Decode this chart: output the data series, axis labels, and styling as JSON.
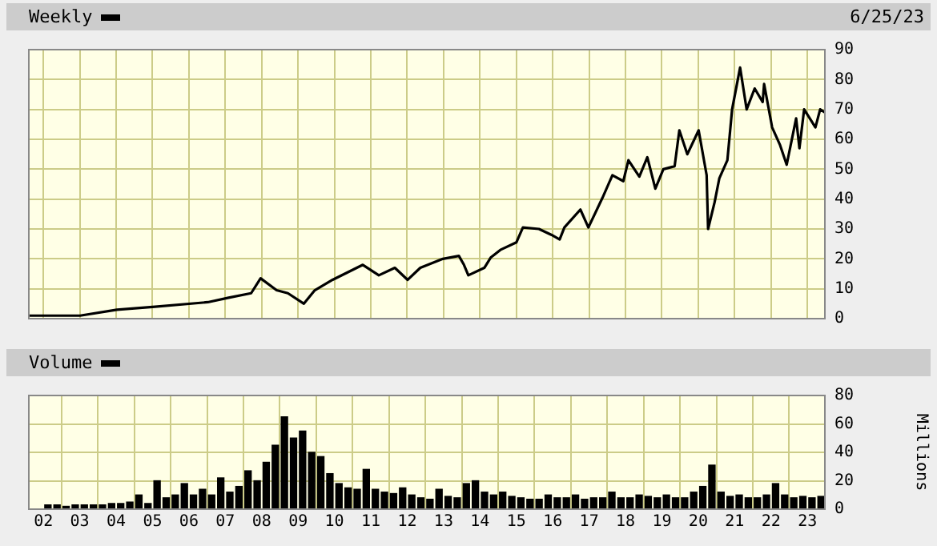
{
  "chart_data": [
    {
      "type": "line",
      "title": "Weekly",
      "annotations": [
        "6/25/23"
      ],
      "color": "#000000",
      "marker": "none",
      "grid": true,
      "tick_labels": "y",
      "x": [
        2001.6,
        2003.01,
        2004.02,
        2005.07,
        2006.52,
        2007.09,
        2007.71,
        2007.97,
        2008.41,
        2008.72,
        2009.16,
        2009.46,
        2009.95,
        2010.78,
        2011.22,
        2011.66,
        2012.01,
        2012.36,
        2012.98,
        2013.42,
        2013.56,
        2013.68,
        2014.12,
        2014.3,
        2014.56,
        2015.0,
        2015.18,
        2015.62,
        2015.97,
        2016.19,
        2016.32,
        2016.76,
        2016.98,
        2017.37,
        2017.64,
        2017.94,
        2018.08,
        2018.38,
        2018.6,
        2018.82,
        2019.04,
        2019.35,
        2019.48,
        2019.7,
        2020.01,
        2020.23,
        2020.27,
        2020.45,
        2020.58,
        2020.8,
        2020.93,
        2021.15,
        2021.33,
        2021.55,
        2021.77,
        2021.81,
        2022.03,
        2022.25,
        2022.43,
        2022.69,
        2022.78,
        2022.91,
        2023.22,
        2023.35,
        2023.48
      ],
      "values": [
        1,
        1,
        3,
        4,
        5.5,
        7,
        8.5,
        13.5,
        9.5,
        8.5,
        5,
        9.5,
        13,
        18,
        14.5,
        17,
        13,
        17,
        20,
        21,
        18,
        14.5,
        17,
        20.5,
        23,
        25.5,
        30.5,
        30,
        28,
        26.5,
        30.5,
        36.5,
        30.5,
        40.5,
        48,
        46,
        53,
        47.5,
        54,
        43.5,
        50,
        51,
        63,
        55,
        63,
        48,
        30,
        39,
        47,
        53,
        70,
        84,
        70,
        77,
        72.5,
        78.5,
        64,
        58,
        51.5,
        67,
        57,
        70,
        64,
        70,
        69
      ],
      "xlim": [
        2001.6,
        2023.48
      ],
      "xticks": [
        {
          "value": 2002,
          "label": null
        },
        {
          "value": 2003,
          "label": null
        },
        {
          "value": 2004,
          "label": null
        },
        {
          "value": 2005,
          "label": null
        },
        {
          "value": 2006,
          "label": null
        },
        {
          "value": 2007,
          "label": null
        },
        {
          "value": 2008,
          "label": null
        },
        {
          "value": 2009,
          "label": null
        },
        {
          "value": 2010,
          "label": null
        },
        {
          "value": 2011,
          "label": null
        },
        {
          "value": 2012,
          "label": null
        },
        {
          "value": 2013,
          "label": null
        },
        {
          "value": 2014,
          "label": null
        },
        {
          "value": 2015,
          "label": null
        },
        {
          "value": 2016,
          "label": null
        },
        {
          "value": 2017,
          "label": null
        },
        {
          "value": 2018,
          "label": null
        },
        {
          "value": 2019,
          "label": null
        },
        {
          "value": 2020,
          "label": null
        },
        {
          "value": 2021,
          "label": null
        },
        {
          "value": 2022,
          "label": null
        },
        {
          "value": 2023,
          "label": null
        }
      ],
      "ylim": [
        0,
        90
      ],
      "yticks": [
        0,
        10,
        20,
        30,
        40,
        50,
        60,
        70,
        80,
        90
      ]
    },
    {
      "type": "bar",
      "title": "Volume",
      "ylabel": "Millions",
      "color": "#000000",
      "grid": true,
      "x": [
        2002.125,
        2002.375,
        2002.625,
        2002.875,
        2003.125,
        2003.375,
        2003.625,
        2003.875,
        2004.125,
        2004.375,
        2004.625,
        2004.875,
        2005.125,
        2005.375,
        2005.625,
        2005.875,
        2006.125,
        2006.375,
        2006.625,
        2006.875,
        2007.125,
        2007.375,
        2007.625,
        2007.875,
        2008.125,
        2008.375,
        2008.625,
        2008.875,
        2009.125,
        2009.375,
        2009.625,
        2009.875,
        2010.125,
        2010.375,
        2010.625,
        2010.875,
        2011.125,
        2011.375,
        2011.625,
        2011.875,
        2012.125,
        2012.375,
        2012.625,
        2012.875,
        2013.125,
        2013.375,
        2013.625,
        2013.875,
        2014.125,
        2014.375,
        2014.625,
        2014.875,
        2015.125,
        2015.375,
        2015.625,
        2015.875,
        2016.125,
        2016.375,
        2016.625,
        2016.875,
        2017.125,
        2017.375,
        2017.625,
        2017.875,
        2018.125,
        2018.375,
        2018.625,
        2018.875,
        2019.125,
        2019.375,
        2019.625,
        2019.875,
        2020.125,
        2020.375,
        2020.625,
        2020.875,
        2021.125,
        2021.375,
        2021.625,
        2021.875,
        2022.125,
        2022.375,
        2022.625,
        2022.875,
        2023.125,
        2023.375
      ],
      "values": [
        3,
        3,
        2,
        3,
        3,
        3,
        3,
        4,
        4,
        5,
        10,
        4,
        20,
        8,
        10,
        18,
        10,
        14,
        10,
        22,
        12,
        16,
        27,
        20,
        33,
        45,
        65,
        50,
        55,
        40,
        37,
        25,
        18,
        15,
        14,
        28,
        14,
        12,
        11,
        15,
        10,
        8,
        7,
        14,
        9,
        8,
        18,
        20,
        12,
        10,
        12,
        9,
        8,
        7,
        7,
        10,
        8,
        8,
        10,
        7,
        8,
        8,
        12,
        8,
        8,
        10,
        9,
        8,
        10,
        8,
        8,
        12,
        16,
        31,
        12,
        9,
        10,
        8,
        8,
        10,
        18,
        10,
        8,
        9,
        8,
        9
      ],
      "xlim": [
        2001.6,
        2023.48
      ],
      "xticks": [
        {
          "value": 2002,
          "label": "02"
        },
        {
          "value": 2003,
          "label": "03"
        },
        {
          "value": 2004,
          "label": "04"
        },
        {
          "value": 2005,
          "label": "05"
        },
        {
          "value": 2006,
          "label": "06"
        },
        {
          "value": 2007,
          "label": "07"
        },
        {
          "value": 2008,
          "label": "08"
        },
        {
          "value": 2009,
          "label": "09"
        },
        {
          "value": 2010,
          "label": "10"
        },
        {
          "value": 2011,
          "label": "11"
        },
        {
          "value": 2012,
          "label": "12"
        },
        {
          "value": 2013,
          "label": "13"
        },
        {
          "value": 2014,
          "label": "14"
        },
        {
          "value": 2015,
          "label": "15"
        },
        {
          "value": 2016,
          "label": "16"
        },
        {
          "value": 2017,
          "label": "17"
        },
        {
          "value": 2018,
          "label": "18"
        },
        {
          "value": 2019,
          "label": "19"
        },
        {
          "value": 2020,
          "label": "20"
        },
        {
          "value": 2021,
          "label": "21"
        },
        {
          "value": 2022,
          "label": "22"
        },
        {
          "value": 2023,
          "label": "23"
        }
      ],
      "ylim": [
        0,
        80
      ],
      "yticks": [
        0,
        20,
        40,
        60,
        80
      ]
    }
  ]
}
